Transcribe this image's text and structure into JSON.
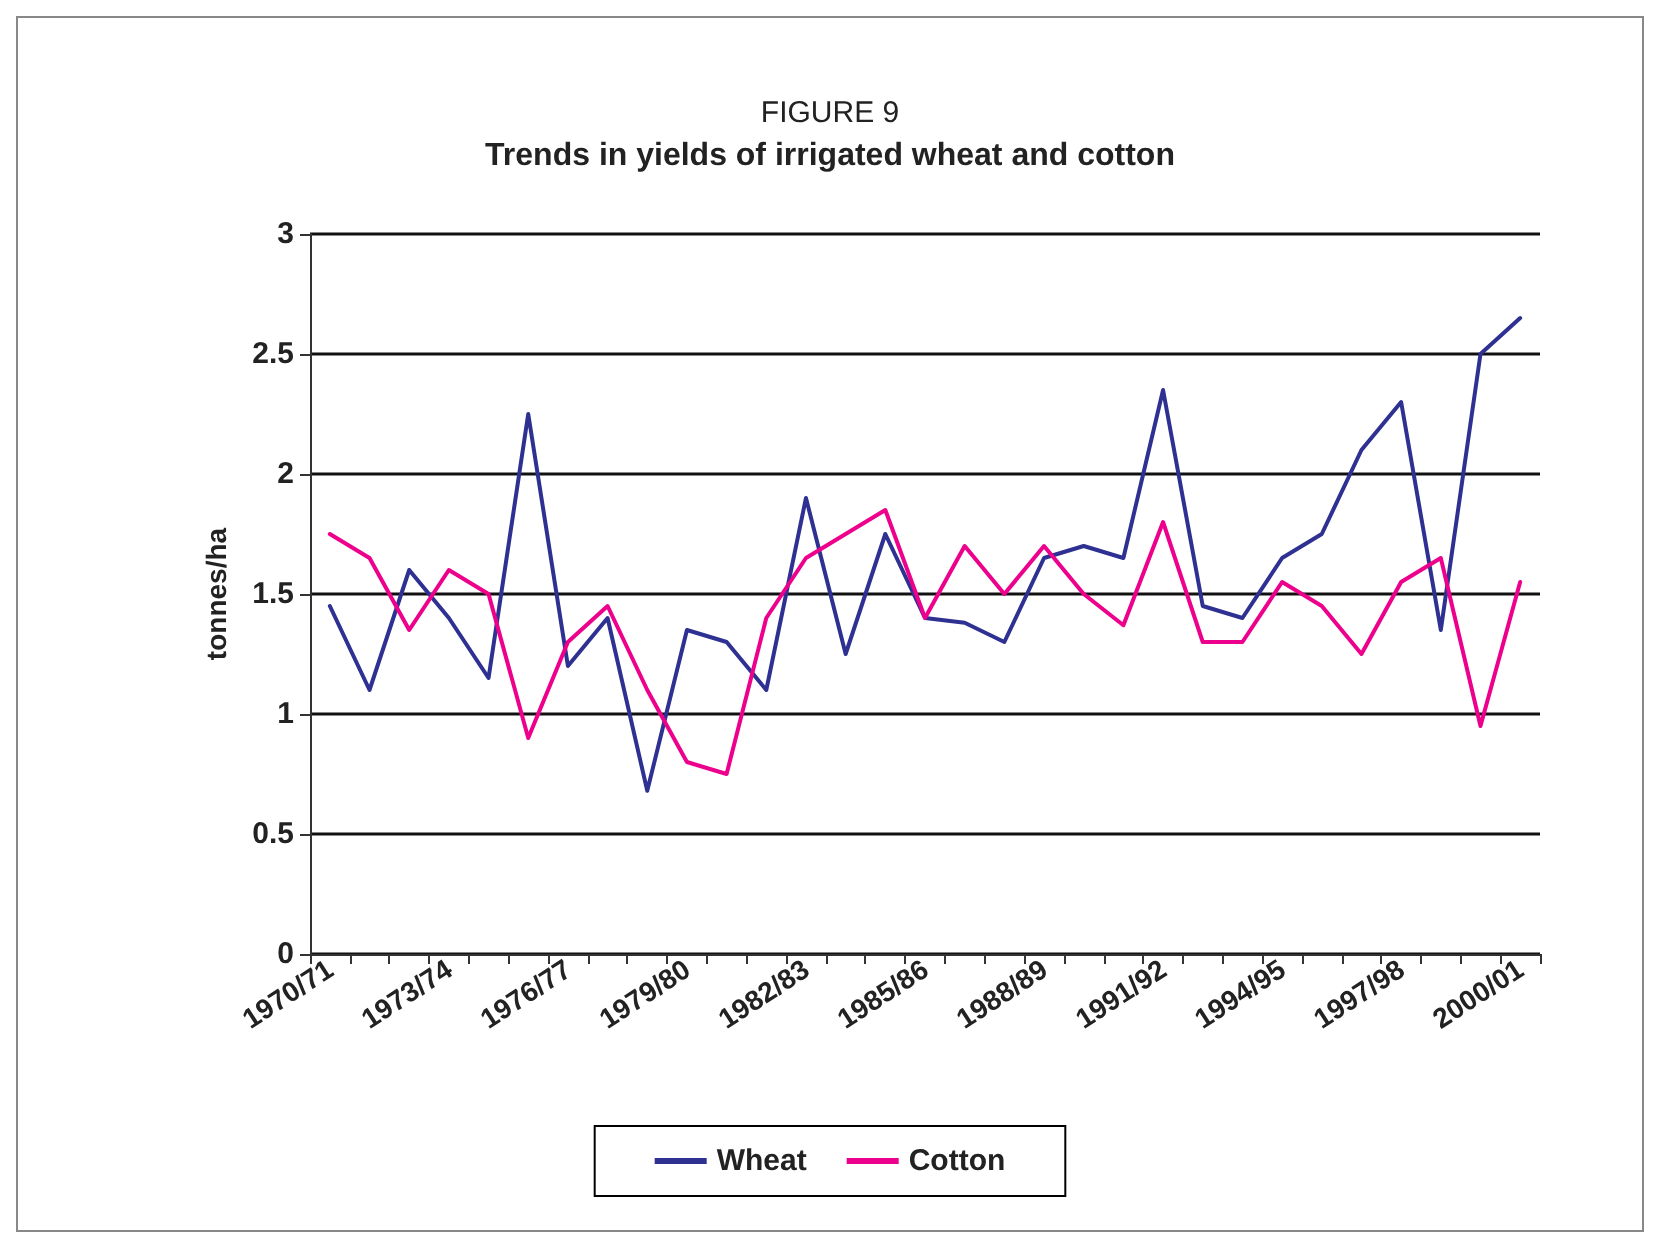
{
  "chart_data": {
    "type": "line",
    "title": "FIGURE 9",
    "subtitle": "Trends in yields of irrigated wheat and cotton",
    "ylabel": "tonnes/ha",
    "categories": [
      "1970/71",
      null,
      null,
      "1973/74",
      null,
      null,
      "1976/77",
      null,
      null,
      "1979/80",
      null,
      null,
      "1982/83",
      null,
      null,
      "1985/86",
      null,
      null,
      "1988/89",
      null,
      null,
      "1991/92",
      null,
      null,
      "1994/95",
      null,
      null,
      "1997/98",
      null,
      null,
      "2000/01"
    ],
    "series": [
      {
        "name": "Wheat",
        "color": "#2e3192",
        "values": [
          1.45,
          1.1,
          1.6,
          1.4,
          1.15,
          2.25,
          1.2,
          1.4,
          0.68,
          1.35,
          1.3,
          1.1,
          1.9,
          1.25,
          1.75,
          1.4,
          1.38,
          1.3,
          1.65,
          1.7,
          1.65,
          2.35,
          1.45,
          1.4,
          1.65,
          1.75,
          2.1,
          2.3,
          1.35,
          2.5,
          2.65
        ]
      },
      {
        "name": "Cotton",
        "color": "#ec008c",
        "values": [
          1.75,
          1.65,
          1.35,
          1.6,
          1.5,
          0.9,
          1.3,
          1.45,
          1.1,
          0.8,
          0.75,
          1.4,
          1.65,
          1.75,
          1.85,
          1.4,
          1.7,
          1.5,
          1.7,
          1.5,
          1.37,
          1.8,
          1.3,
          1.3,
          1.55,
          1.45,
          1.25,
          1.55,
          1.65,
          0.95,
          1.55
        ]
      }
    ],
    "ylim": [
      0,
      3
    ],
    "yticks": [
      0,
      0.5,
      1,
      1.5,
      2,
      2.5,
      3
    ],
    "grid": "y",
    "legend": "bottom",
    "marker": "none",
    "line_style": "solid"
  }
}
